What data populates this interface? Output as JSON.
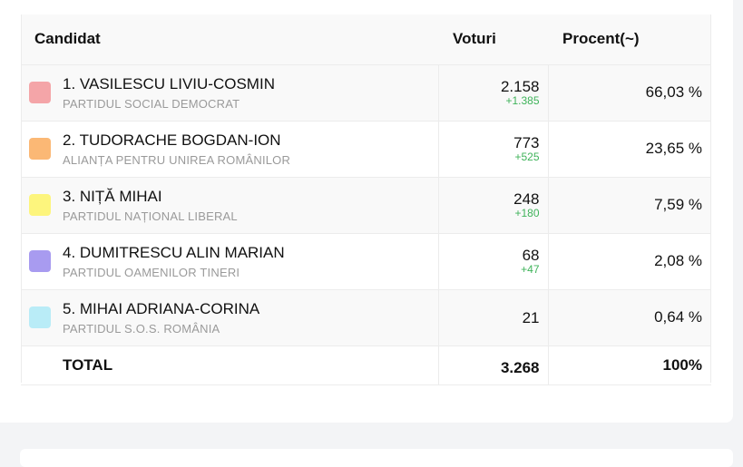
{
  "table": {
    "headers": {
      "candidate": "Candidat",
      "votes": "Voturi",
      "percent": "Procent(~)"
    },
    "rows": [
      {
        "name": "1. VASILESCU LIVIU-COSMIN",
        "party": "PARTIDUL SOCIAL DEMOCRAT",
        "votes": "2.158",
        "delta": "+1.385",
        "percent": "66,03 %",
        "color": "#f4a5a8"
      },
      {
        "name": "2. TUDORACHE BOGDAN-ION",
        "party": "ALIANȚA PENTRU UNIREA ROMÂNILOR",
        "votes": "773",
        "delta": "+525",
        "percent": "23,65 %",
        "color": "#fbb875"
      },
      {
        "name": "3. NIȚĂ MIHAI",
        "party": "PARTIDUL NAȚIONAL LIBERAL",
        "votes": "248",
        "delta": "+180",
        "percent": "7,59 %",
        "color": "#fdf57d"
      },
      {
        "name": "4. DUMITRESCU ALIN MARIAN",
        "party": "PARTIDUL OAMENILOR TINERI",
        "votes": "68",
        "delta": "+47",
        "percent": "2,08 %",
        "color": "#a89bf0"
      },
      {
        "name": "5. MIHAI ADRIANA-CORINA",
        "party": "PARTIDUL S.O.S. ROMÂNIA",
        "votes": "21",
        "delta": "",
        "percent": "0,64 %",
        "color": "#b9ecf7"
      }
    ],
    "total": {
      "label": "TOTAL",
      "votes": "3.268",
      "percent": "100%"
    }
  }
}
